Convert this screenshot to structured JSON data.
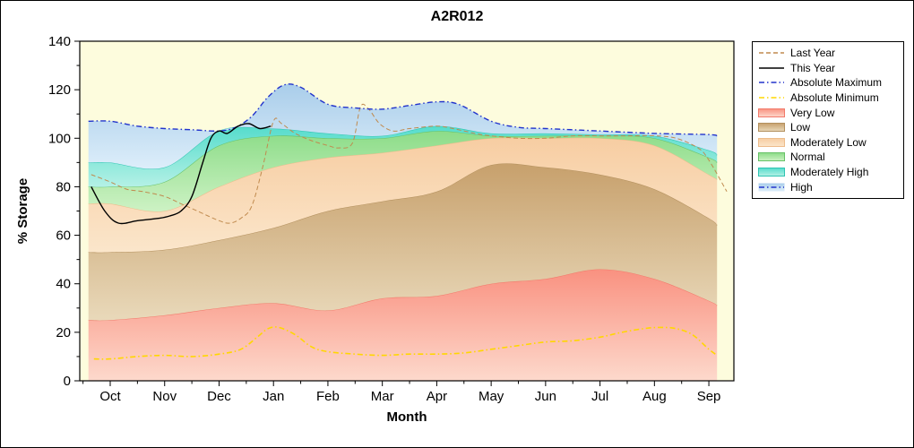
{
  "chart_data": {
    "type": "area",
    "title": "A2R012",
    "xlabel": "Month",
    "ylabel": "% Storage",
    "months": [
      "Oct",
      "Nov",
      "Dec",
      "Jan",
      "Feb",
      "Mar",
      "Apr",
      "May",
      "Jun",
      "Jul",
      "Aug",
      "Sep"
    ],
    "y_ticks": [
      0,
      20,
      40,
      60,
      80,
      100,
      120,
      140
    ],
    "ylim": [
      0,
      140
    ],
    "x_domain": [
      -0.56,
      11.46
    ],
    "colors": {
      "plot_bg": "#fdfcdd",
      "frame": "#000000",
      "outer_bg": "#ffffff"
    },
    "band_x": [
      -0.4,
      0,
      1,
      2,
      3,
      4,
      5,
      6,
      7,
      8,
      9,
      10,
      11,
      11.15
    ],
    "bands": [
      {
        "label": "Very Low",
        "top": [
          25,
          25,
          27,
          30,
          32,
          29,
          34,
          35,
          40,
          42,
          46,
          42,
          33,
          31
        ],
        "fill_top": "#f99180",
        "fill_bottom": "#fdd9cc",
        "stroke": "#f2796a"
      },
      {
        "label": "Low",
        "top": [
          53,
          53,
          54,
          58,
          63,
          70,
          74,
          78,
          89,
          88,
          85,
          79,
          67,
          64
        ],
        "fill_top": "#c7a06c",
        "fill_bottom": "#e9d9ba",
        "stroke": "#b3905e"
      },
      {
        "label": "Moderately Low",
        "top": [
          73,
          73,
          70,
          80,
          88,
          92,
          94,
          97,
          100,
          100,
          100,
          97,
          85,
          83
        ],
        "fill_top": "#f7cda2",
        "fill_bottom": "#fbe6cb",
        "stroke": "#edbc8b"
      },
      {
        "label": "Normal",
        "top": [
          80,
          80,
          82,
          97,
          101,
          100,
          100,
          103,
          101,
          101,
          101,
          100,
          92,
          90
        ],
        "fill_top": "#8cdc88",
        "fill_bottom": "#cdf2c4",
        "stroke": "#67c167"
      },
      {
        "label": "Moderately High",
        "top": [
          90,
          90,
          88,
          103,
          104,
          102,
          101,
          105,
          102,
          102,
          101.5,
          101,
          95,
          93
        ],
        "fill_top": "#55dccc",
        "fill_bottom": "#b5f1e6",
        "stroke": "#2fc4b2"
      },
      {
        "label": "High",
        "x": [
          -0.4,
          0,
          0.5,
          1,
          1.5,
          2,
          2.3,
          2.6,
          2.9,
          3.2,
          3.5,
          4,
          4.5,
          5,
          5.5,
          6,
          6.4,
          7,
          7.5,
          8,
          9,
          10,
          11,
          11.15
        ],
        "top": [
          107,
          107,
          105,
          104,
          103.5,
          103,
          104.5,
          109,
          117,
          122,
          121,
          114,
          112.5,
          112,
          113.5,
          115,
          114,
          107,
          104.5,
          104,
          103,
          102,
          101.5,
          101
        ],
        "fill_top": "#a9cdea",
        "fill_bottom": "#ddeefa",
        "stroke": null
      }
    ],
    "lines": [
      {
        "label": "Last Year",
        "color": "#c08a4e",
        "width": 1,
        "dash": "5 3",
        "x": [
          -0.35,
          0,
          0.3,
          0.6,
          1,
          1.3,
          1.6,
          2,
          2.2,
          2.4,
          2.6,
          2.8,
          3,
          3.15,
          3.4,
          3.7,
          4,
          4.2,
          4.45,
          4.6,
          4.75,
          4.95,
          5.2,
          5.5,
          6,
          6.3,
          6.7,
          7,
          7.5,
          8,
          8.5,
          9,
          9.5,
          10,
          10.4,
          10.8,
          11,
          11.33
        ],
        "y": [
          85,
          82,
          79,
          78,
          76,
          73,
          70,
          66,
          65,
          67,
          72,
          88,
          107,
          106,
          102,
          99,
          97,
          96,
          98,
          113,
          112,
          106,
          103,
          104,
          105,
          104,
          102,
          101,
          100,
          100,
          101,
          101,
          101,
          101,
          100,
          96,
          91,
          78
        ]
      },
      {
        "label": "Absolute Minimum",
        "color": "#ffd700",
        "width": 1.6,
        "dash": "6 3 1.5 3",
        "x": [
          -0.3,
          0,
          0.5,
          1,
          1.5,
          2,
          2.4,
          2.7,
          2.9,
          3.1,
          3.4,
          3.7,
          4,
          4.5,
          5,
          5.5,
          6,
          6.5,
          7,
          7.5,
          8,
          8.5,
          9,
          9.4,
          9.8,
          10.1,
          10.4,
          10.7,
          11,
          11.15
        ],
        "y": [
          9,
          9,
          10,
          10.5,
          10,
          11,
          13,
          18,
          21.5,
          22,
          19,
          14,
          12,
          11,
          10.5,
          11,
          11,
          11.5,
          13,
          14.5,
          16,
          16.5,
          18,
          20,
          21.5,
          22,
          21.5,
          19,
          13,
          10.5
        ]
      },
      {
        "label": "Absolute Maximum",
        "color": "#2233cc",
        "width": 1.4,
        "dash": "6 3 1.5 3",
        "x": [
          -0.4,
          0,
          0.5,
          1,
          1.5,
          2,
          2.3,
          2.6,
          2.9,
          3.2,
          3.5,
          4,
          4.5,
          5,
          5.5,
          6,
          6.4,
          7,
          7.5,
          8,
          9,
          10,
          11,
          11.15
        ],
        "y": [
          107,
          107,
          105,
          104,
          103.5,
          103,
          104.5,
          109,
          117,
          122,
          121,
          114,
          112.5,
          112,
          113.5,
          115,
          114,
          107,
          104.5,
          104,
          103,
          102,
          101.5,
          101
        ]
      },
      {
        "label": "This Year",
        "color": "#000000",
        "width": 1.4,
        "dash": null,
        "x": [
          -0.35,
          -0.1,
          0.15,
          0.5,
          0.9,
          1.1,
          1.3,
          1.5,
          1.7,
          1.85,
          2,
          2.15,
          2.35,
          2.55,
          2.75,
          2.95
        ],
        "y": [
          80,
          70,
          65,
          66,
          67,
          68,
          70,
          76,
          90,
          100,
          103,
          102,
          105,
          106,
          104,
          105
        ]
      }
    ],
    "legend": [
      {
        "label": "Last Year",
        "sample": "line",
        "color": "#c08a4e",
        "dash": "5 3"
      },
      {
        "label": "This Year",
        "sample": "line",
        "color": "#000000",
        "dash": null
      },
      {
        "label": "Absolute Maximum",
        "sample": "line",
        "color": "#2233cc",
        "dash": "6 3 1.5 3"
      },
      {
        "label": "Absolute Minimum",
        "sample": "line",
        "color": "#ffd700",
        "dash": "6 3 1.5 3"
      },
      {
        "label": "Very Low",
        "sample": "box",
        "fill_top": "#f99180",
        "fill_bottom": "#fdd9cc",
        "stroke": "#f2796a"
      },
      {
        "label": "Low",
        "sample": "box",
        "fill_top": "#c7a06c",
        "fill_bottom": "#e9d9ba",
        "stroke": "#b3905e"
      },
      {
        "label": "Moderately Low",
        "sample": "box",
        "fill_top": "#f7cda2",
        "fill_bottom": "#fbe6cb",
        "stroke": "#edbc8b"
      },
      {
        "label": "Normal",
        "sample": "box",
        "fill_top": "#8cdc88",
        "fill_bottom": "#cdf2c4",
        "stroke": "#67c167"
      },
      {
        "label": "Moderately High",
        "sample": "box",
        "fill_top": "#55dccc",
        "fill_bottom": "#b5f1e6",
        "stroke": "#2fc4b2"
      },
      {
        "label": "High",
        "sample": "box-line",
        "fill_top": "#a9cdea",
        "fill_bottom": "#ddeefa",
        "stroke": null,
        "color": "#2233cc",
        "dash": "6 3 1.5 3"
      }
    ]
  }
}
